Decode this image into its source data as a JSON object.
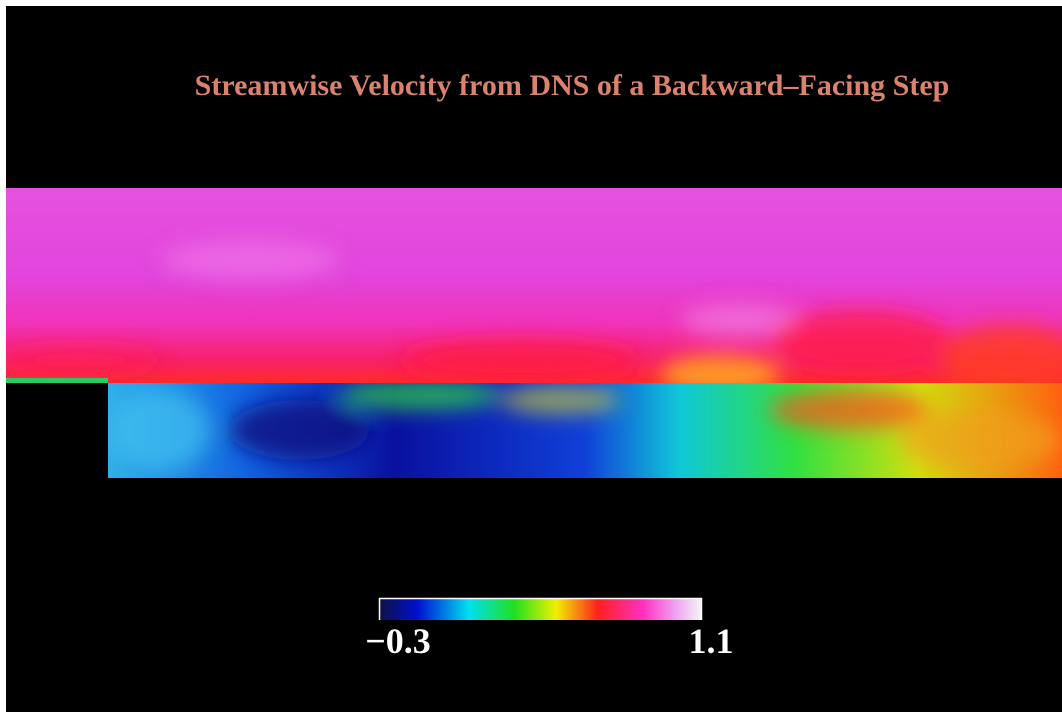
{
  "title": "Streamwise Velocity from DNS of a Backward–Facing Step",
  "colorbar": {
    "min_label": "−0.3",
    "max_label": "1.1"
  }
}
